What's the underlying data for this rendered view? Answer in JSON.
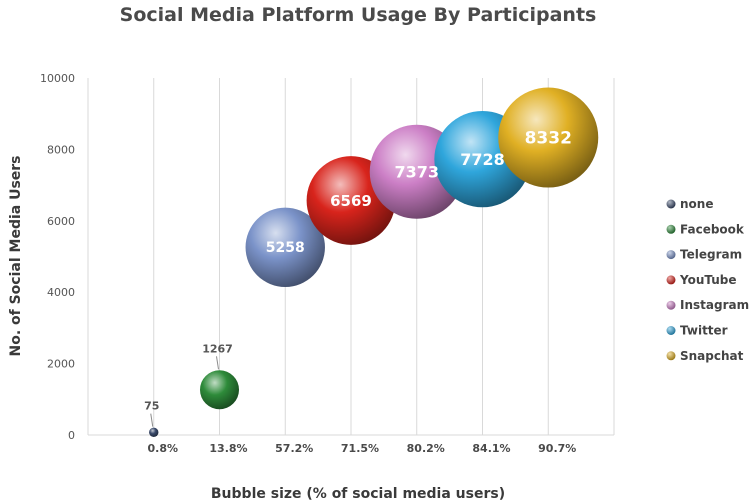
{
  "chart_data": {
    "type": "scatter",
    "title": "Social Media Platform Usage By Participants",
    "xlabel": "Bubble size (% of social media users)",
    "ylabel": "No. of Social Media Users",
    "ylim": [
      0,
      10000
    ],
    "y_ticks": [
      0,
      2000,
      4000,
      6000,
      8000,
      10000
    ],
    "x_categories": [
      "0.8%",
      "13.8%",
      "57.2%",
      "71.5%",
      "80.2%",
      "84.1%",
      "90.7%"
    ],
    "grid": "vertical",
    "legend_position": "right",
    "series": [
      {
        "name": "none",
        "category": "0.8%",
        "y": 75,
        "size_percent": 0.8,
        "label": "75",
        "color": "#3a4a6b"
      },
      {
        "name": "Facebook",
        "category": "13.8%",
        "y": 1267,
        "size_percent": 13.8,
        "label": "1267",
        "color": "#2e8b3a"
      },
      {
        "name": "Telegram",
        "category": "57.2%",
        "y": 5258,
        "size_percent": 57.2,
        "label": "5258",
        "color": "#7b93c9"
      },
      {
        "name": "YouTube",
        "category": "71.5%",
        "y": 6569,
        "size_percent": 71.5,
        "label": "6569",
        "color": "#d8241c"
      },
      {
        "name": "Instagram",
        "category": "80.2%",
        "y": 7373,
        "size_percent": 80.2,
        "label": "7373",
        "color": "#cc7fc6"
      },
      {
        "name": "Twitter",
        "category": "84.1%",
        "y": 7728,
        "size_percent": 84.1,
        "label": "7728",
        "color": "#2fa6dc"
      },
      {
        "name": "Snapchat",
        "category": "90.7%",
        "y": 8332,
        "size_percent": 90.7,
        "label": "8332",
        "color": "#e0b024"
      }
    ]
  }
}
